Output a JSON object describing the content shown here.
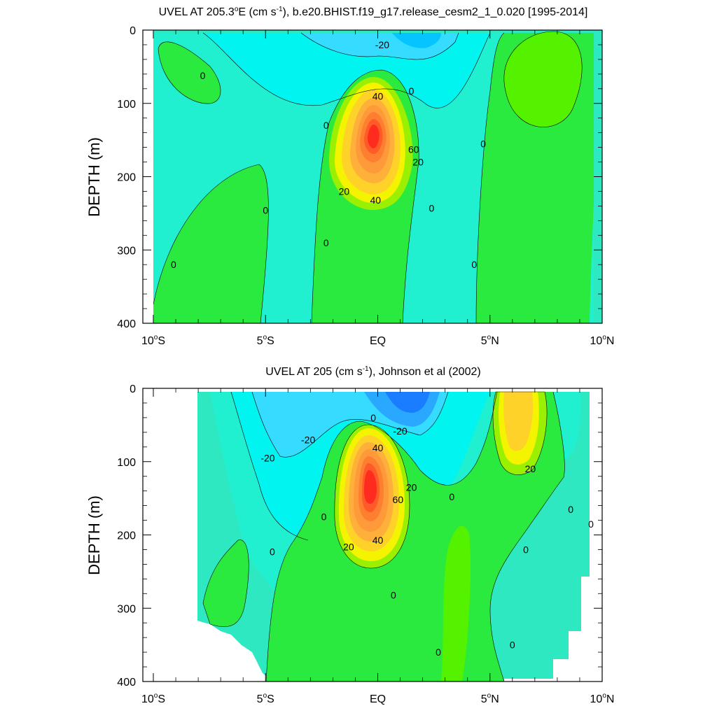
{
  "chart_data": [
    {
      "type": "contour",
      "title_main": "UVEL AT 205.3",
      "title_deg": "o",
      "title_after_deg": "E (cm s",
      "title_sup": "-1",
      "title_rest": "), b.e20.BHIST.f19_g17.release_cesm2_1_0.020 [1995-2014]",
      "ylabel": "DEPTH (m)",
      "xlim": [
        -10,
        10
      ],
      "ylim": [
        400,
        0
      ],
      "x_ticks": [
        {
          "value": -10,
          "num": "10",
          "deg": "o",
          "hemi": "S"
        },
        {
          "value": -5,
          "num": "5",
          "deg": "o",
          "hemi": "S"
        },
        {
          "value": 0,
          "num": "EQ",
          "deg": "",
          "hemi": ""
        },
        {
          "value": 5,
          "num": "5",
          "deg": "o",
          "hemi": "N"
        },
        {
          "value": 10,
          "num": "10",
          "deg": "o",
          "hemi": "N"
        }
      ],
      "y_ticks": [
        0,
        100,
        200,
        300,
        400
      ],
      "contour_interval": 10,
      "max_value": 80,
      "max_location": {
        "lat": 0.0,
        "depth": 150
      },
      "contour_labels": [
        {
          "lat": -7.8,
          "depth": 62,
          "text": "0"
        },
        {
          "lat": 0.2,
          "depth": 20,
          "text": "-20"
        },
        {
          "lat": 1.5,
          "depth": 83,
          "text": "0"
        },
        {
          "lat": -2.3,
          "depth": 130,
          "text": "0"
        },
        {
          "lat": 0.0,
          "depth": 90,
          "text": "40"
        },
        {
          "lat": 4.7,
          "depth": 155,
          "text": "0"
        },
        {
          "lat": 1.6,
          "depth": 163,
          "text": "60"
        },
        {
          "lat": 1.8,
          "depth": 180,
          "text": "20"
        },
        {
          "lat": -1.5,
          "depth": 220,
          "text": "20"
        },
        {
          "lat": -0.1,
          "depth": 232,
          "text": "40"
        },
        {
          "lat": 2.4,
          "depth": 243,
          "text": "0"
        },
        {
          "lat": -5.0,
          "depth": 246,
          "text": "0"
        },
        {
          "lat": -2.3,
          "depth": 290,
          "text": "0"
        },
        {
          "lat": -9.1,
          "depth": 320,
          "text": "0"
        },
        {
          "lat": 4.3,
          "depth": 320,
          "text": "0"
        }
      ]
    },
    {
      "type": "contour",
      "title_main": "UVEL AT 205 (cm s",
      "title_sup": "-1",
      "title_rest": "), Johnson et al (2002)",
      "ylabel": "DEPTH (m)",
      "xlim": [
        -10,
        10
      ],
      "ylim": [
        400,
        0
      ],
      "x_ticks": [
        {
          "value": -10,
          "num": "10",
          "deg": "o",
          "hemi": "S"
        },
        {
          "value": -5,
          "num": "5",
          "deg": "o",
          "hemi": "S"
        },
        {
          "value": 0,
          "num": "EQ",
          "deg": "",
          "hemi": ""
        },
        {
          "value": 5,
          "num": "5",
          "deg": "o",
          "hemi": "N"
        },
        {
          "value": 10,
          "num": "10",
          "deg": "o",
          "hemi": "N"
        }
      ],
      "y_ticks": [
        0,
        100,
        200,
        300,
        400
      ],
      "contour_interval": 10,
      "max_value": 80,
      "max_location": {
        "lat": -0.3,
        "depth": 132
      },
      "data_extent_lat": [
        -8,
        9.8
      ],
      "contour_labels": [
        {
          "lat": -0.2,
          "depth": 40,
          "text": "0"
        },
        {
          "lat": 1.0,
          "depth": 58,
          "text": "-20"
        },
        {
          "lat": -3.1,
          "depth": 70,
          "text": "-20"
        },
        {
          "lat": -4.9,
          "depth": 95,
          "text": "-20"
        },
        {
          "lat": 0.0,
          "depth": 81,
          "text": "40"
        },
        {
          "lat": 6.8,
          "depth": 110,
          "text": "20"
        },
        {
          "lat": 1.5,
          "depth": 135,
          "text": "20"
        },
        {
          "lat": 0.9,
          "depth": 152,
          "text": "60"
        },
        {
          "lat": 3.3,
          "depth": 148,
          "text": "0"
        },
        {
          "lat": -2.4,
          "depth": 175,
          "text": "0"
        },
        {
          "lat": 8.6,
          "depth": 165,
          "text": "0"
        },
        {
          "lat": 9.5,
          "depth": 185,
          "text": "0"
        },
        {
          "lat": -1.3,
          "depth": 216,
          "text": "20"
        },
        {
          "lat": 0.0,
          "depth": 207,
          "text": "40"
        },
        {
          "lat": -4.7,
          "depth": 223,
          "text": "0"
        },
        {
          "lat": 6.6,
          "depth": 220,
          "text": "0"
        },
        {
          "lat": 0.7,
          "depth": 282,
          "text": "0"
        },
        {
          "lat": 6.0,
          "depth": 350,
          "text": "0"
        },
        {
          "lat": 2.7,
          "depth": 360,
          "text": "0"
        }
      ]
    }
  ]
}
